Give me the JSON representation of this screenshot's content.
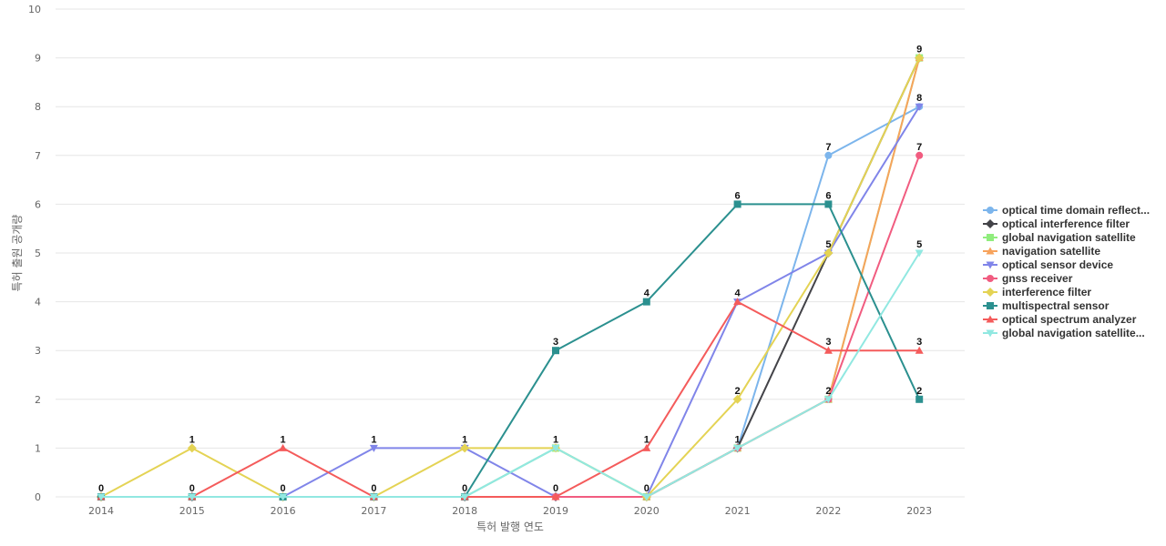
{
  "chart_data": {
    "type": "line",
    "title": "",
    "xlabel": "특허 발행 연도",
    "ylabel": "특허 출원 공개량",
    "x": [
      "2014",
      "2015",
      "2016",
      "2017",
      "2018",
      "2019",
      "2020",
      "2021",
      "2022",
      "2023"
    ],
    "ylim": [
      0,
      10
    ],
    "yticks": [
      "0",
      "1",
      "2",
      "3",
      "4",
      "5",
      "6",
      "7",
      "8",
      "9",
      "10"
    ],
    "grid": true,
    "legend_position": "right",
    "series": [
      {
        "name": "optical time domain reflect...",
        "color": "#7cb5ec",
        "marker": "circle",
        "values": [
          0,
          0,
          0,
          0,
          0,
          1,
          0,
          1,
          7,
          8
        ]
      },
      {
        "name": "optical interference filter",
        "color": "#434348",
        "marker": "diamond",
        "values": [
          0,
          0,
          0,
          0,
          0,
          0,
          0,
          1,
          5,
          9
        ]
      },
      {
        "name": "global navigation satellite",
        "color": "#90ed7d",
        "marker": "square",
        "values": [
          0,
          0,
          0,
          0,
          0,
          1,
          0,
          1,
          2,
          9
        ]
      },
      {
        "name": "navigation satellite",
        "color": "#f7a35c",
        "marker": "triangle",
        "values": [
          0,
          0,
          0,
          0,
          0,
          0,
          0,
          1,
          2,
          9
        ]
      },
      {
        "name": "optical sensor device",
        "color": "#8085e9",
        "marker": "triangle-down",
        "values": [
          0,
          0,
          0,
          1,
          1,
          0,
          0,
          4,
          5,
          8
        ]
      },
      {
        "name": "gnss receiver",
        "color": "#f15c80",
        "marker": "circle",
        "values": [
          0,
          0,
          0,
          0,
          0,
          0,
          0,
          1,
          2,
          7
        ]
      },
      {
        "name": "interference filter",
        "color": "#e4d354",
        "marker": "diamond",
        "values": [
          0,
          1,
          0,
          0,
          1,
          1,
          0,
          2,
          5,
          9
        ]
      },
      {
        "name": "multispectral sensor",
        "color": "#2b908f",
        "marker": "square",
        "values": [
          0,
          0,
          0,
          0,
          0,
          3,
          4,
          6,
          6,
          2
        ]
      },
      {
        "name": "optical spectrum analyzer",
        "color": "#f45b5b",
        "marker": "triangle",
        "values": [
          0,
          0,
          1,
          0,
          0,
          0,
          1,
          4,
          3,
          3
        ]
      },
      {
        "name": "global navigation satellite...",
        "color": "#91e8e1",
        "marker": "triangle-down",
        "values": [
          0,
          0,
          0,
          0,
          0,
          1,
          0,
          1,
          2,
          5
        ]
      }
    ],
    "data_labels": [
      {
        "x": "2014",
        "value": 0
      },
      {
        "x": "2015",
        "value": 1
      },
      {
        "x": "2015",
        "value": 0
      },
      {
        "x": "2016",
        "value": 1
      },
      {
        "x": "2016",
        "value": 0
      },
      {
        "x": "2017",
        "value": 1
      },
      {
        "x": "2017",
        "value": 0
      },
      {
        "x": "2018",
        "value": 1
      },
      {
        "x": "2018",
        "value": 0
      },
      {
        "x": "2019",
        "value": 3
      },
      {
        "x": "2019",
        "value": 1
      },
      {
        "x": "2019",
        "value": 0
      },
      {
        "x": "2020",
        "value": 4
      },
      {
        "x": "2020",
        "value": 1
      },
      {
        "x": "2020",
        "value": 0
      },
      {
        "x": "2021",
        "value": 6
      },
      {
        "x": "2021",
        "value": 4
      },
      {
        "x": "2021",
        "value": 2
      },
      {
        "x": "2021",
        "value": 1
      },
      {
        "x": "2022",
        "value": 7
      },
      {
        "x": "2022",
        "value": 6
      },
      {
        "x": "2022",
        "value": 5
      },
      {
        "x": "2022",
        "value": 3
      },
      {
        "x": "2022",
        "value": 2
      },
      {
        "x": "2023",
        "value": 9
      },
      {
        "x": "2023",
        "value": 8
      },
      {
        "x": "2023",
        "value": 7
      },
      {
        "x": "2023",
        "value": 5
      },
      {
        "x": "2023",
        "value": 3
      },
      {
        "x": "2023",
        "value": 2
      }
    ]
  }
}
